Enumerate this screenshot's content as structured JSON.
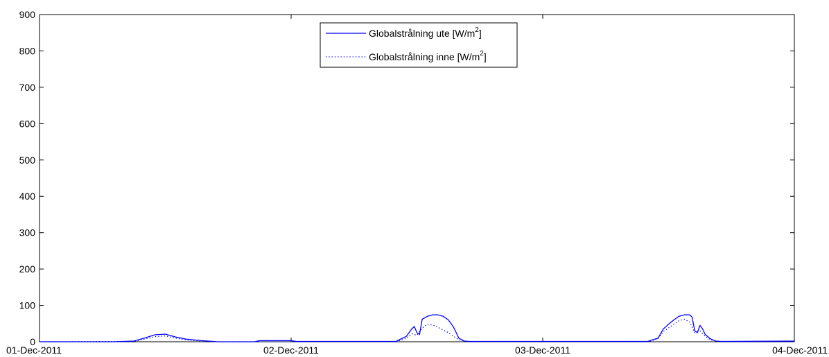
{
  "chart_data": {
    "type": "line",
    "title": "",
    "xlabel": "",
    "ylabel": "",
    "ylim": [
      0,
      900
    ],
    "yticks": [
      0,
      100,
      200,
      300,
      400,
      500,
      600,
      700,
      800,
      900
    ],
    "xlim": [
      "2011-12-01",
      "2011-12-04"
    ],
    "xticks": [
      {
        "date": "2011-12-01",
        "label": "01-Dec-2011"
      },
      {
        "date": "2011-12-02",
        "label": "02-Dec-2011"
      },
      {
        "date": "2011-12-03",
        "label": "03-Dec-2011"
      },
      {
        "date": "2011-12-04",
        "label": "04-Dec-2011"
      }
    ],
    "grid": false,
    "legend_position": "top-center",
    "series": [
      {
        "name_main": "Globalstrålning ute [W/m",
        "name_sup": "2",
        "name_end": "]",
        "color": "#0000ff",
        "line_style": "solid",
        "points": [
          [
            "2011-12-01 00:00",
            0
          ],
          [
            "2011-12-01 07:00",
            0
          ],
          [
            "2011-12-01 09:00",
            2
          ],
          [
            "2011-12-01 10:00",
            10
          ],
          [
            "2011-12-01 11:00",
            19
          ],
          [
            "2011-12-01 12:00",
            21
          ],
          [
            "2011-12-01 13:00",
            13
          ],
          [
            "2011-12-01 14:00",
            7
          ],
          [
            "2011-12-01 15:30",
            3
          ],
          [
            "2011-12-01 17:00",
            0
          ],
          [
            "2011-12-01 20:30",
            0
          ],
          [
            "2011-12-01 21:00",
            3
          ],
          [
            "2011-12-02 00:00",
            3
          ],
          [
            "2011-12-02 00:30",
            1
          ],
          [
            "2011-12-02 10:00",
            1
          ],
          [
            "2011-12-02 11:00",
            15
          ],
          [
            "2011-12-02 11:30",
            35
          ],
          [
            "2011-12-02 11:45",
            42
          ],
          [
            "2011-12-02 12:00",
            25
          ],
          [
            "2011-12-02 12:15",
            20
          ],
          [
            "2011-12-02 12:30",
            62
          ],
          [
            "2011-12-02 13:00",
            70
          ],
          [
            "2011-12-02 13:30",
            74
          ],
          [
            "2011-12-02 14:00",
            74
          ],
          [
            "2011-12-02 14:30",
            70
          ],
          [
            "2011-12-02 15:00",
            60
          ],
          [
            "2011-12-02 15:30",
            40
          ],
          [
            "2011-12-02 16:00",
            10
          ],
          [
            "2011-12-02 16:30",
            2
          ],
          [
            "2011-12-02 17:00",
            1
          ],
          [
            "2011-12-03 10:00",
            1
          ],
          [
            "2011-12-03 11:00",
            10
          ],
          [
            "2011-12-03 11:30",
            35
          ],
          [
            "2011-12-03 12:00",
            48
          ],
          [
            "2011-12-03 12:30",
            60
          ],
          [
            "2011-12-03 13:00",
            70
          ],
          [
            "2011-12-03 13:30",
            74
          ],
          [
            "2011-12-03 14:00",
            74
          ],
          [
            "2011-12-03 14:15",
            68
          ],
          [
            "2011-12-03 14:30",
            30
          ],
          [
            "2011-12-03 14:45",
            25
          ],
          [
            "2011-12-03 15:00",
            45
          ],
          [
            "2011-12-03 15:15",
            35
          ],
          [
            "2011-12-03 15:30",
            20
          ],
          [
            "2011-12-03 16:00",
            8
          ],
          [
            "2011-12-03 16:30",
            2
          ],
          [
            "2011-12-03 17:00",
            1
          ],
          [
            "2011-12-04 00:00",
            2
          ]
        ]
      },
      {
        "name_main": "Globalstrålning inne [W/m",
        "name_sup": "2",
        "name_end": "]",
        "color": "#0000ff",
        "line_style": "dotted",
        "points": [
          [
            "2011-12-01 00:00",
            0
          ],
          [
            "2011-12-01 09:00",
            1
          ],
          [
            "2011-12-01 10:00",
            7
          ],
          [
            "2011-12-01 11:00",
            14
          ],
          [
            "2011-12-01 12:00",
            16
          ],
          [
            "2011-12-01 13:00",
            10
          ],
          [
            "2011-12-01 14:00",
            5
          ],
          [
            "2011-12-01 15:30",
            2
          ],
          [
            "2011-12-01 17:00",
            0
          ],
          [
            "2011-12-02 10:00",
            0
          ],
          [
            "2011-12-02 11:00",
            10
          ],
          [
            "2011-12-02 11:30",
            22
          ],
          [
            "2011-12-02 12:00",
            18
          ],
          [
            "2011-12-02 12:30",
            38
          ],
          [
            "2011-12-02 13:00",
            48
          ],
          [
            "2011-12-02 13:30",
            46
          ],
          [
            "2011-12-02 14:00",
            40
          ],
          [
            "2011-12-02 15:00",
            25
          ],
          [
            "2011-12-02 16:00",
            5
          ],
          [
            "2011-12-02 17:00",
            0
          ],
          [
            "2011-12-03 10:00",
            0
          ],
          [
            "2011-12-03 11:00",
            8
          ],
          [
            "2011-12-03 11:30",
            28
          ],
          [
            "2011-12-03 12:00",
            38
          ],
          [
            "2011-12-03 12:30",
            48
          ],
          [
            "2011-12-03 13:00",
            58
          ],
          [
            "2011-12-03 13:30",
            62
          ],
          [
            "2011-12-03 14:00",
            55
          ],
          [
            "2011-12-03 14:30",
            25
          ],
          [
            "2011-12-03 15:00",
            30
          ],
          [
            "2011-12-03 15:30",
            15
          ],
          [
            "2011-12-03 16:00",
            5
          ],
          [
            "2011-12-03 17:00",
            0
          ],
          [
            "2011-12-04 00:00",
            0
          ]
        ]
      }
    ]
  }
}
